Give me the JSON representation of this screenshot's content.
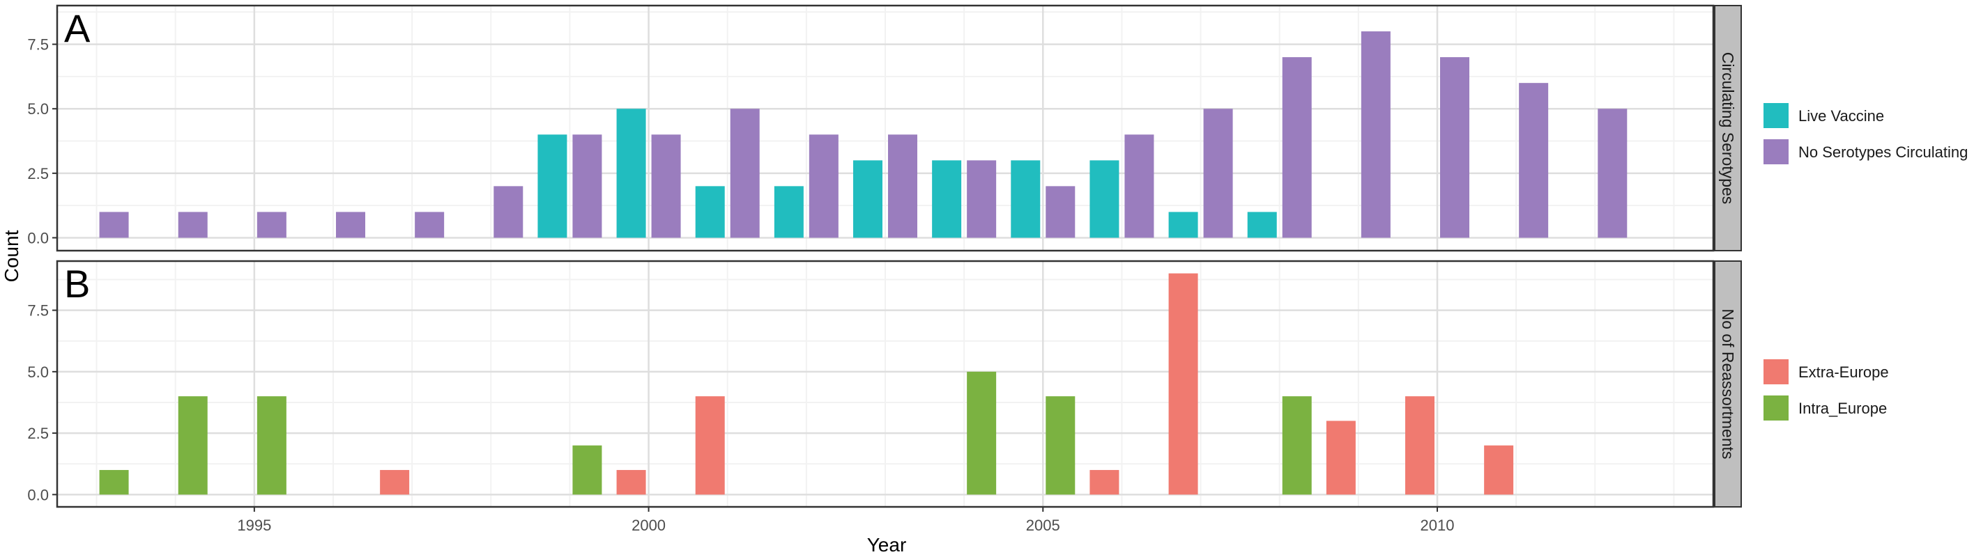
{
  "chart_data": {
    "type": "bar",
    "xlabel": "Year",
    "ylabel": "Count",
    "xlim": [
      1992.5,
      2013.5
    ],
    "x_ticks": [
      "1995",
      "2000",
      "2005",
      "2010"
    ],
    "x_tick_values": [
      1995,
      2000,
      2005,
      2010
    ],
    "y_ticks": [
      "0.0",
      "2.5",
      "5.0",
      "7.5"
    ],
    "y_tick_values": [
      0,
      2.5,
      5,
      7.5
    ],
    "grid": true,
    "legend_position": "right",
    "panels": [
      {
        "letter": "A",
        "strip": "Circulating Serotypes",
        "ylim": [
          -0.5,
          9.0
        ],
        "series": [
          {
            "name": "Live Vaccine",
            "color": "#21BDBF",
            "x": [
              1999,
              2000,
              2001,
              2002,
              2003,
              2004,
              2005,
              2006,
              2007,
              2008
            ],
            "values": [
              4,
              5,
              2,
              2,
              3,
              3,
              3,
              3,
              1,
              1
            ]
          },
          {
            "name": "No Serotypes Circulating",
            "color": "#9A7DBE",
            "x": [
              1993,
              1994,
              1995,
              1996,
              1997,
              1998,
              1999,
              2000,
              2001,
              2002,
              2003,
              2004,
              2005,
              2006,
              2007,
              2008,
              2009,
              2010,
              2011,
              2012
            ],
            "values": [
              1,
              1,
              1,
              1,
              1,
              2,
              4,
              4,
              5,
              4,
              4,
              3,
              2,
              4,
              5,
              7,
              8,
              7,
              6,
              5
            ]
          }
        ]
      },
      {
        "letter": "B",
        "strip": "No of Reassortments",
        "ylim": [
          -0.5,
          9.5
        ],
        "series": [
          {
            "name": "Extra-Europe",
            "color": "#F07A70",
            "x": [
              1997,
              2000,
              2001,
              2006,
              2007,
              2009,
              2010,
              2011
            ],
            "values": [
              1,
              1,
              4,
              1,
              9,
              3,
              4,
              2
            ]
          },
          {
            "name": "Intra_Europe",
            "color": "#7BB241",
            "x": [
              1993,
              1994,
              1995,
              1999,
              2004,
              2005,
              2008
            ],
            "values": [
              1,
              4,
              4,
              2,
              5,
              4,
              4
            ]
          }
        ]
      }
    ]
  }
}
